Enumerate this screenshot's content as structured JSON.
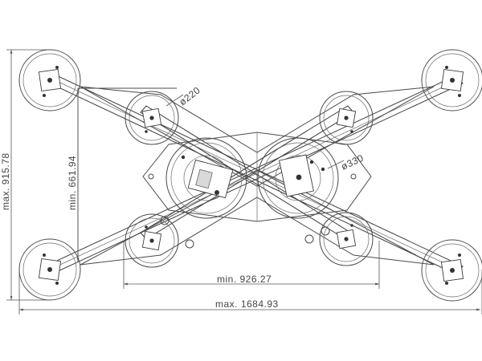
{
  "diagram": {
    "dimensions": {
      "max_height": "max. 915.78",
      "min_height": "min. 661.94",
      "min_width": "min. 926.27",
      "max_width": "max. 1684.93",
      "small_pad_dia": "ø220",
      "large_pad_dia": "ø330"
    }
  }
}
